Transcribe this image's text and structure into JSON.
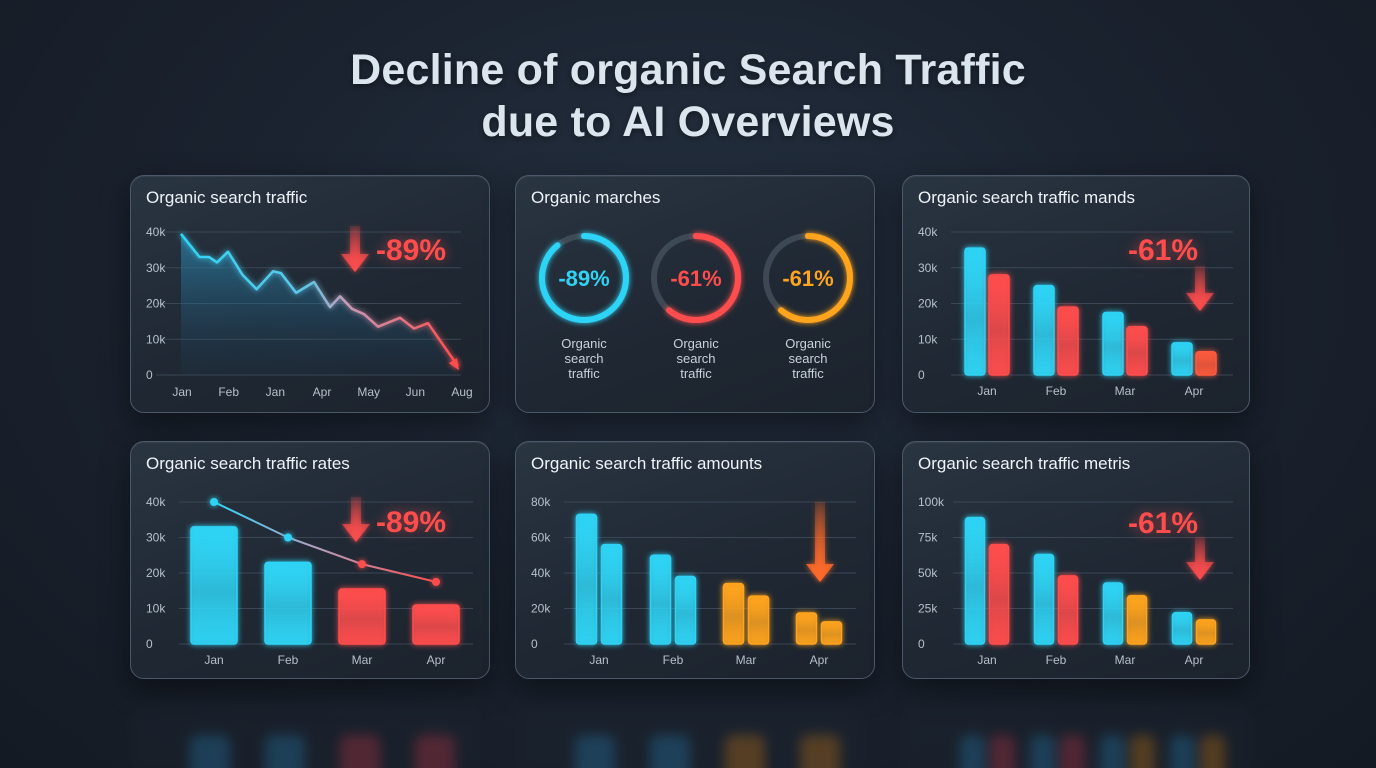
{
  "title": {
    "line1": "Decline of organic Search Traffic",
    "line2": "due to AI Overviews"
  },
  "colors": {
    "background": "#1b2330",
    "card": "#222c37",
    "card_border": "#4a5869",
    "cyan": "#2fd4f5",
    "red": "#ff4d4d",
    "orange": "#ffa41f",
    "gridline": "#3a4656",
    "axis_text": "#b6c0cb"
  },
  "cards": [
    {
      "title": "Organic search traffic",
      "badge": "-89%"
    },
    {
      "title": "Organic marches"
    },
    {
      "title": "Organic search traffic mands",
      "badge": "-61%"
    },
    {
      "title": "Organic search traffic rates",
      "badge": "-89%"
    },
    {
      "title": "Organic search traffic amounts"
    },
    {
      "title": "Organic search traffic metris",
      "badge": "-61%"
    }
  ],
  "chart_data": [
    {
      "id": "organic-search-traffic",
      "type": "area",
      "title": "Organic search traffic",
      "annotation": "-89%",
      "x_tick_labels": [
        "Jan",
        "Feb",
        "Jan",
        "Apr",
        "May",
        "Jun",
        "Aug"
      ],
      "y_tick_labels": [
        "0",
        "10k",
        "20k",
        "30k",
        "40k"
      ],
      "ylim": [
        0,
        40000
      ],
      "grid": true,
      "x": [
        0,
        0.025,
        0.066,
        0.1,
        0.129,
        0.168,
        0.22,
        0.27,
        0.329,
        0.357,
        0.411,
        0.475,
        0.532,
        0.568,
        0.611,
        0.654,
        0.704,
        0.782,
        0.832,
        0.882,
        0.989
      ],
      "values": [
        39500,
        37000,
        33000,
        33000,
        31500,
        34500,
        28000,
        24000,
        29000,
        28500,
        23000,
        26000,
        19000,
        22000,
        18500,
        17000,
        13500,
        16000,
        13000,
        14500,
        2500
      ],
      "gradient": [
        "#2fd4f5",
        "#ff4d4d"
      ]
    },
    {
      "id": "organic-marches",
      "type": "pie",
      "title": "Organic marches",
      "rings": [
        {
          "value": "-89%",
          "label": [
            "Organic",
            "search",
            "traffic"
          ],
          "color": "#2fd4f5",
          "fraction": 0.89
        },
        {
          "value": "-61%",
          "label": [
            "Organic",
            "search",
            "traffic"
          ],
          "color": "#ff4d4d",
          "fraction": 0.61
        },
        {
          "value": "-61%",
          "label": [
            "Organic",
            "search",
            "traffic"
          ],
          "color": "#ffa41f",
          "fraction": 0.61
        }
      ]
    },
    {
      "id": "organic-search-traffic-mands",
      "type": "bar",
      "title": "Organic search traffic mands",
      "annotation": "-61%",
      "categories": [
        "Jan",
        "Feb",
        "Mar",
        "Apr"
      ],
      "y_tick_labels": [
        "0",
        "10k",
        "20k",
        "30k",
        "40k"
      ],
      "ylim": [
        0,
        40000
      ],
      "grid": true,
      "series": [
        {
          "name": "series-1",
          "values": [
            35500,
            25000,
            17500,
            9000
          ],
          "colors": [
            "#2fd4f5",
            "#2fd4f5",
            "#2fd4f5",
            "#2fd4f5"
          ]
        },
        {
          "name": "series-2",
          "values": [
            28000,
            19000,
            13500,
            6500
          ],
          "colors": [
            "#ff4d4d",
            "#ff4d4d",
            "#ff4d4d",
            "#ff5a3c"
          ]
        }
      ]
    },
    {
      "id": "organic-search-traffic-rates",
      "type": "bar",
      "title": "Organic search traffic rates",
      "annotation": "-89%",
      "categories": [
        "Jan",
        "Feb",
        "Mar",
        "Apr"
      ],
      "y_tick_labels": [
        "0",
        "10k",
        "20k",
        "30k",
        "40k"
      ],
      "ylim": [
        0,
        40000
      ],
      "grid": true,
      "series": [
        {
          "name": "bars",
          "values": [
            33000,
            23000,
            15500,
            11000
          ],
          "colors": [
            "#2fd4f5",
            "#2fd4f5",
            "#ff4d4d",
            "#ff4d4d"
          ]
        },
        {
          "name": "line",
          "values": [
            40000,
            30000,
            22500,
            17500
          ],
          "type": "line"
        }
      ]
    },
    {
      "id": "organic-search-traffic-amounts",
      "type": "bar",
      "title": "Organic search traffic amounts",
      "categories": [
        "Jan",
        "Feb",
        "Mar",
        "Apr"
      ],
      "y_tick_labels": [
        "0",
        "20k",
        "40k",
        "60k",
        "80k"
      ],
      "ylim": [
        0,
        80000
      ],
      "grid": true,
      "series": [
        {
          "name": "series-1",
          "values": [
            73000,
            50000,
            34000,
            17500
          ],
          "colors": [
            "#2fd4f5",
            "#2fd4f5",
            "#ffa41f",
            "#ffa41f"
          ]
        },
        {
          "name": "series-2",
          "values": [
            56000,
            38000,
            27000,
            12500
          ],
          "colors": [
            "#2fd4f5",
            "#2fd4f5",
            "#ffa41f",
            "#ffa41f"
          ]
        }
      ]
    },
    {
      "id": "organic-search-traffic-metris",
      "type": "bar",
      "title": "Organic search traffic metris",
      "annotation": "-61%",
      "categories": [
        "Jan",
        "Feb",
        "Mar",
        "Apr"
      ],
      "y_tick_labels": [
        "0",
        "25k",
        "50k",
        "75k",
        "100k"
      ],
      "ylim": [
        0,
        100000
      ],
      "grid": true,
      "series": [
        {
          "name": "series-1",
          "values": [
            89000,
            63000,
            43000,
            22000
          ],
          "colors": [
            "#2fd4f5",
            "#2fd4f5",
            "#2fd4f5",
            "#2fd4f5"
          ]
        },
        {
          "name": "series-2",
          "values": [
            70000,
            48000,
            34000,
            17000
          ],
          "colors": [
            "#ff4d4d",
            "#ff4d4d",
            "#ffa41f",
            "#ffa41f"
          ]
        }
      ]
    }
  ]
}
